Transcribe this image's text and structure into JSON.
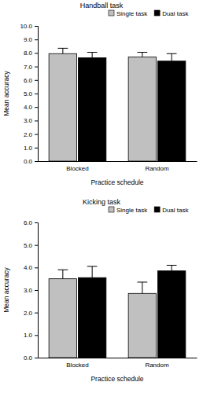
{
  "chart_data": [
    {
      "type": "bar",
      "title": "Handball task",
      "x_label": "Practice schedule",
      "y_label": "Mean accuracy",
      "categories": [
        "Blocked",
        "Random"
      ],
      "series": [
        {
          "name": "Single task",
          "color": "#c0c0c0",
          "values": [
            7.95,
            7.7
          ],
          "errors": [
            0.4,
            0.35
          ]
        },
        {
          "name": "Dual task",
          "color": "#000000",
          "values": [
            7.65,
            7.4
          ],
          "errors": [
            0.4,
            0.55
          ]
        }
      ],
      "ylim": [
        0,
        10
      ],
      "yticks": [
        {
          "value": 0,
          "label": "0.0"
        },
        {
          "value": 1,
          "label": "1.0"
        },
        {
          "value": 2,
          "label": "2.0"
        },
        {
          "value": 3,
          "label": "3.0"
        },
        {
          "value": 4,
          "label": "4.0"
        },
        {
          "value": 5,
          "label": "5.0"
        },
        {
          "value": 6,
          "label": "6.0"
        },
        {
          "value": 7,
          "label": "7.0"
        },
        {
          "value": 8,
          "label": "8.0"
        },
        {
          "value": 9,
          "label": "9.0"
        },
        {
          "value": 10,
          "label": "10.0"
        }
      ],
      "grid": false,
      "legend": "top"
    },
    {
      "type": "bar",
      "title": "Kicking task",
      "x_label": "Practice schedule",
      "y_label": "Mean accuracy",
      "categories": [
        "Blocked",
        "Random"
      ],
      "series": [
        {
          "name": "Single task",
          "color": "#c0c0c0",
          "values": [
            3.5,
            2.85
          ],
          "errors": [
            0.4,
            0.5
          ]
        },
        {
          "name": "Dual task",
          "color": "#000000",
          "values": [
            3.55,
            3.85
          ],
          "errors": [
            0.5,
            0.25
          ]
        }
      ],
      "ylim": [
        0,
        6
      ],
      "yticks": [
        {
          "value": 0,
          "label": "0.0"
        },
        {
          "value": 1,
          "label": "1.0"
        },
        {
          "value": 2,
          "label": "2.0"
        },
        {
          "value": 3,
          "label": "3.0"
        },
        {
          "value": 4,
          "label": "4.0"
        },
        {
          "value": 5,
          "label": "5.0"
        },
        {
          "value": 6,
          "label": "6.0"
        }
      ],
      "grid": false,
      "legend": "top"
    }
  ]
}
